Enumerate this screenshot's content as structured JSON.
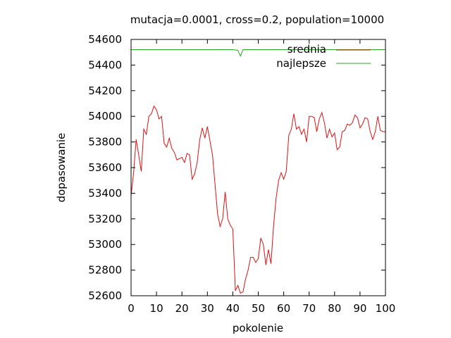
{
  "chart_data": {
    "type": "line",
    "title": "mutacja=0.0001, cross=0.2, population=10000",
    "xlabel": "pokolenie",
    "ylabel": "dopasowanie",
    "xlim": [
      0,
      100
    ],
    "ylim": [
      52600,
      54600
    ],
    "xticks": [
      "0",
      "10",
      "20",
      "30",
      "40",
      "50",
      "60",
      "70",
      "80",
      "90",
      "100"
    ],
    "yticks": [
      "52600",
      "52800",
      "53000",
      "53200",
      "53400",
      "53600",
      "53800",
      "54000",
      "54200",
      "54400",
      "54600"
    ],
    "grid": false,
    "legend_position": "top-right",
    "series": [
      {
        "name": "srednia",
        "color": "#dd1111",
        "x": [
          0,
          1,
          2,
          3,
          4,
          5,
          6,
          7,
          8,
          9,
          10,
          11,
          12,
          13,
          14,
          15,
          16,
          17,
          18,
          19,
          20,
          21,
          22,
          23,
          24,
          25,
          26,
          27,
          28,
          29,
          30,
          31,
          32,
          33,
          34,
          35,
          36,
          37,
          38,
          39,
          40,
          41,
          42,
          43,
          44,
          45,
          46,
          47,
          48,
          49,
          50,
          51,
          52,
          53,
          54,
          55,
          56,
          57,
          58,
          59,
          60,
          61,
          62,
          63,
          64,
          65,
          66,
          67,
          68,
          69,
          70,
          71,
          72,
          73,
          74,
          75,
          76,
          77,
          78,
          79,
          80,
          81,
          82,
          83,
          84,
          85,
          86,
          87,
          88,
          89,
          90,
          91,
          92,
          93,
          94,
          95,
          96,
          97,
          98,
          99,
          100
        ],
        "y": [
          53380,
          53560,
          53820,
          53700,
          53570,
          53900,
          53860,
          54000,
          54020,
          54080,
          54050,
          53980,
          54000,
          53790,
          53760,
          53830,
          53750,
          53720,
          53660,
          53670,
          53680,
          53640,
          53710,
          53700,
          53510,
          53550,
          53640,
          53820,
          53910,
          53830,
          53920,
          53810,
          53700,
          53470,
          53240,
          53140,
          53200,
          53410,
          53200,
          53150,
          53120,
          52640,
          52680,
          52620,
          52630,
          52730,
          52800,
          52900,
          52900,
          52860,
          52890,
          53050,
          53000,
          52840,
          52960,
          52850,
          53140,
          53360,
          53500,
          53560,
          53510,
          53570,
          53850,
          53900,
          54020,
          53900,
          53920,
          53860,
          53900,
          53800,
          54000,
          54000,
          53990,
          53880,
          53980,
          54030,
          53950,
          53830,
          53900,
          53840,
          53870,
          53740,
          53760,
          53880,
          53890,
          53940,
          53930,
          53950,
          54010,
          53990,
          53910,
          53940,
          53990,
          53980,
          53880,
          53820,
          53880,
          54000,
          53890,
          53880,
          53880
        ]
      },
      {
        "name": "najlepsze",
        "color": "#22aa22",
        "x": [
          0,
          10,
          20,
          30,
          40,
          42,
          43,
          44,
          50,
          60,
          70,
          80,
          90,
          100
        ],
        "y": [
          54520,
          54520,
          54520,
          54520,
          54520,
          54515,
          54470,
          54520,
          54520,
          54520,
          54520,
          54520,
          54520,
          54520
        ]
      }
    ]
  }
}
